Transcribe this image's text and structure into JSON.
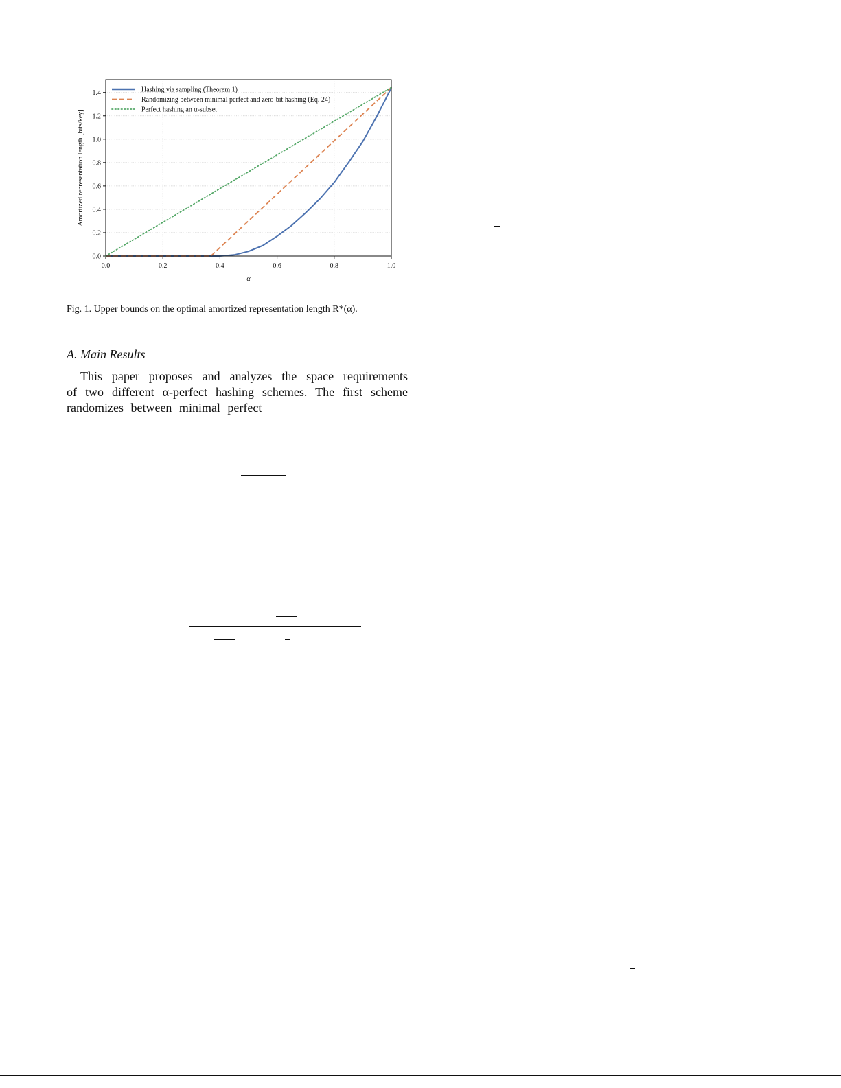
{
  "chart_data": {
    "type": "line",
    "title": "",
    "xlabel": "α",
    "ylabel": "Amortized representation length [bits/key]",
    "xlim": [
      0.0,
      1.0
    ],
    "ylim": [
      0.0,
      1.51
    ],
    "xticks": [
      "0.0",
      "0.2",
      "0.4",
      "0.6",
      "0.8",
      "1.0"
    ],
    "yticks": [
      "0.0",
      "0.2",
      "0.4",
      "0.6",
      "0.8",
      "1.0",
      "1.2",
      "1.4"
    ],
    "grid": true,
    "legend_placement": "top-left",
    "series": [
      {
        "name": "Hashing via sampling (Theorem 1)",
        "style": "solid",
        "color": "#4c72b0",
        "x": [
          0.0,
          0.4,
          0.45,
          0.5,
          0.55,
          0.6,
          0.65,
          0.7,
          0.75,
          0.8,
          0.85,
          0.9,
          0.95,
          1.0
        ],
        "y": [
          0.0,
          0.0,
          0.01,
          0.04,
          0.09,
          0.17,
          0.26,
          0.37,
          0.49,
          0.63,
          0.8,
          0.98,
          1.2,
          1.44
        ]
      },
      {
        "name": "Randomizing between minimal perfect and zero-bit hashing (Eq. 24)",
        "style": "dashed",
        "color": "#dd8452",
        "x": [
          0.0,
          0.368,
          1.0
        ],
        "y": [
          0.0,
          0.0,
          1.443
        ]
      },
      {
        "name": "Perfect hashing an α-subset",
        "style": "dotted",
        "color": "#55a868",
        "x": [
          0.0,
          1.0
        ],
        "y": [
          0.0,
          1.443
        ]
      }
    ]
  },
  "caption": "Fig. 1.  Upper bounds on the optimal amortized representation length R*(α).",
  "section": {
    "heading": "A.  Main Results",
    "lines": [
      "This paper proposes and analyzes the space requirements",
      "of two different α-perfect hashing schemes. The first scheme",
      "randomizes between minimal perfect"
    ]
  }
}
